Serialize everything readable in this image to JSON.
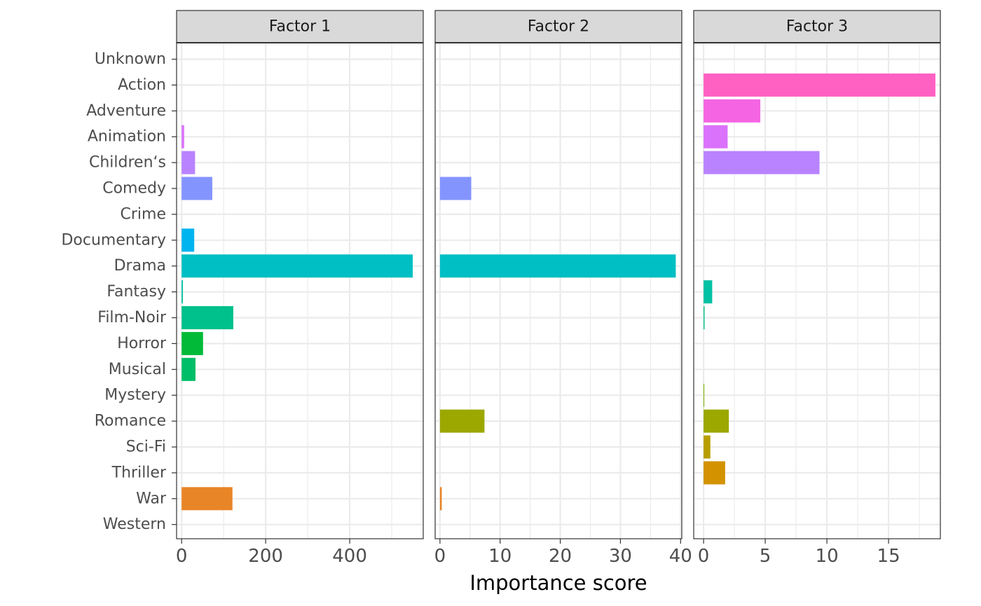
{
  "chart_data": {
    "type": "bar",
    "orientation": "horizontal",
    "xlabel": "Importance score",
    "ylabel": "",
    "grid": true,
    "legend": "none",
    "categories": [
      "Unknown",
      "Action",
      "Adventure",
      "Animation",
      "Children‘s",
      "Comedy",
      "Crime",
      "Documentary",
      "Drama",
      "Fantasy",
      "Film-Noir",
      "Horror",
      "Musical",
      "Mystery",
      "Romance",
      "Sci-Fi",
      "Thriller",
      "War",
      "Western"
    ],
    "colors": [
      "#F8766D",
      "#FF61C3",
      "#F564E3",
      "#DB72FB",
      "#B983FF",
      "#8494FF",
      "#00A9FF",
      "#00B4EF",
      "#00BFC4",
      "#00C1A3",
      "#00C08B",
      "#00BA38",
      "#00BE67",
      "#7CAE00",
      "#9CA700",
      "#B79F00",
      "#D39200",
      "#E88526",
      "#F8766D"
    ],
    "facets": [
      {
        "name": "Factor 1",
        "xlim": [
          -12,
          575
        ],
        "xticks": [
          0,
          200,
          400
        ],
        "values": [
          0,
          0,
          0,
          6,
          32,
          73,
          0,
          30,
          550,
          3,
          123,
          51,
          33,
          0,
          0,
          0,
          0,
          121,
          0
        ]
      },
      {
        "name": "Factor 2",
        "xlim": [
          -0.8,
          40.2
        ],
        "xticks": [
          0,
          10,
          20,
          30,
          40
        ],
        "values": [
          0,
          0,
          0,
          0,
          0,
          5.2,
          0,
          0,
          39.2,
          0,
          0,
          0,
          0,
          0,
          7.4,
          0,
          0,
          0.3,
          0
        ]
      },
      {
        "name": "Factor 3",
        "xlim": [
          -0.8,
          19.2
        ],
        "xticks": [
          0,
          5,
          10,
          15
        ],
        "values": [
          0,
          18.8,
          4.6,
          1.95,
          9.4,
          0,
          0,
          0,
          0,
          0.7,
          0.08,
          0,
          0,
          0.05,
          2.05,
          0.55,
          1.75,
          0,
          0
        ]
      }
    ]
  }
}
